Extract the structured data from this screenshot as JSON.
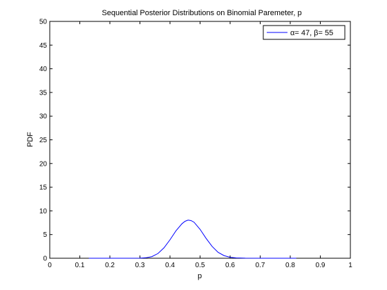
{
  "chart_data": {
    "type": "line",
    "title": "Sequential Posterior Distributions on Binomial Paremeter, p",
    "xlabel": "p",
    "ylabel": "PDF",
    "xlim": [
      0,
      1
    ],
    "ylim": [
      0,
      50
    ],
    "xticks": [
      0,
      0.1,
      0.2,
      0.3,
      0.4,
      0.5,
      0.6,
      0.7,
      0.8,
      0.9,
      1
    ],
    "xtick_labels": [
      "0",
      "0.1",
      "0.2",
      "0.3",
      "0.4",
      "0.5",
      "0.6",
      "0.7",
      "0.8",
      "0.9",
      "1"
    ],
    "yticks": [
      0,
      5,
      10,
      15,
      20,
      25,
      30,
      35,
      40,
      45,
      50
    ],
    "ytick_labels": [
      "0",
      "5",
      "10",
      "15",
      "20",
      "25",
      "30",
      "35",
      "40",
      "45",
      "50"
    ],
    "grid": false,
    "legend_position": "top-right",
    "series": [
      {
        "name": "α= 47,  β= 55",
        "color": "#0000ff",
        "x": [
          0.13,
          0.2,
          0.25,
          0.3,
          0.32,
          0.34,
          0.36,
          0.38,
          0.4,
          0.42,
          0.44,
          0.45,
          0.46,
          0.47,
          0.48,
          0.5,
          0.52,
          0.54,
          0.56,
          0.58,
          0.6,
          0.62,
          0.65,
          0.7,
          0.75,
          0.82
        ],
        "y": [
          0,
          0,
          0,
          0.02,
          0.1,
          0.35,
          1.0,
          2.2,
          3.9,
          5.8,
          7.3,
          7.8,
          8.05,
          7.95,
          7.6,
          6.1,
          4.2,
          2.5,
          1.25,
          0.55,
          0.2,
          0.07,
          0.01,
          0,
          0,
          0
        ]
      }
    ]
  }
}
